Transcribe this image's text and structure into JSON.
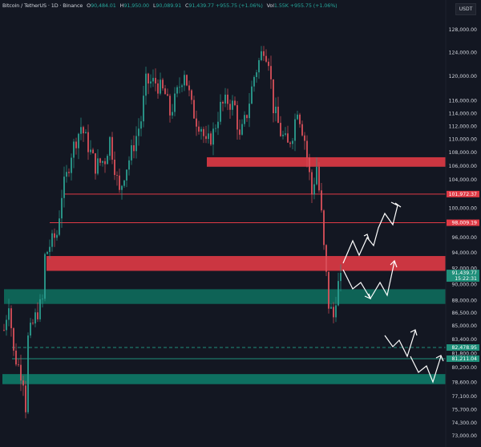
{
  "header": {
    "symbol": "Bitcoin / TetherUS · 1D · Binance",
    "o_label": "O",
    "o": "90,484.01",
    "h_label": "H",
    "h": "91,950.00",
    "l_label": "L",
    "l": "90,089.91",
    "c_label": "C",
    "c": "91,439.77",
    "change": "+955.75 (+1.06%)",
    "vol_label": "Vol",
    "vol": "1.55K",
    "vol_change": "+955.75 (+1.06%)"
  },
  "currency": "USDT",
  "chart_data": {
    "type": "candlestick",
    "title": "Bitcoin / TetherUS · 1D · Binance",
    "scale": "log",
    "ylim": [
      72500,
      130000
    ],
    "y_ticks": [
      128000,
      124000,
      120000,
      116000,
      114000,
      112000,
      110000,
      108000,
      106000,
      104000,
      100000,
      96000,
      94000,
      92000,
      90000,
      88000,
      86500,
      85000,
      83400,
      81800,
      80200,
      78600,
      77100,
      75700,
      74300,
      73000
    ],
    "y_tick_labels": [
      "128,000.00",
      "124,000.00",
      "120,000.00",
      "116,000.00",
      "114,000.00",
      "112,000.00",
      "110,000.00",
      "108,000.00",
      "106,000.00",
      "104,000.00",
      "100,000.00",
      "96,000.00",
      "94,000.00",
      "92,000.00",
      "90,000.00",
      "88,000.00",
      "86,500.00",
      "85,000.00",
      "83,400.00",
      "81,800.00",
      "80,200.00",
      "78,600.00",
      "77,100.00",
      "75,700.00",
      "74,300.00",
      "73,000.00"
    ],
    "close_path": [
      [
        0,
        84500
      ],
      [
        2,
        88000
      ],
      [
        4,
        81800
      ],
      [
        8,
        79000
      ],
      [
        9,
        76000
      ],
      [
        10,
        83500
      ],
      [
        13,
        86000
      ],
      [
        16,
        88000
      ],
      [
        17,
        93500
      ],
      [
        19,
        95000
      ],
      [
        22,
        96500
      ],
      [
        24,
        102000
      ],
      [
        26,
        104500
      ],
      [
        28,
        108000
      ],
      [
        32,
        112000
      ],
      [
        34,
        110000
      ],
      [
        38,
        106000
      ],
      [
        42,
        107000
      ],
      [
        44,
        110000
      ],
      [
        48,
        102000
      ],
      [
        50,
        105000
      ],
      [
        53,
        108000
      ],
      [
        57,
        113000
      ],
      [
        59,
        119000
      ],
      [
        63,
        119000
      ],
      [
        67,
        117000
      ],
      [
        69,
        114000
      ],
      [
        71,
        116000
      ],
      [
        75,
        121000
      ],
      [
        78,
        115000
      ],
      [
        80,
        113000
      ],
      [
        82,
        112000
      ],
      [
        84,
        109000
      ],
      [
        87,
        111000
      ],
      [
        90,
        115000
      ],
      [
        93,
        116000
      ],
      [
        96,
        115000
      ],
      [
        98,
        110000
      ],
      [
        101,
        114000
      ],
      [
        104,
        120000
      ],
      [
        108,
        125000
      ],
      [
        110,
        123000
      ],
      [
        112,
        115000
      ],
      [
        115,
        111000
      ],
      [
        118,
        109000
      ],
      [
        120,
        111000
      ],
      [
        122,
        115000
      ],
      [
        125,
        110000
      ],
      [
        128,
        102000
      ],
      [
        130,
        106000
      ],
      [
        132,
        99000
      ],
      [
        133,
        94500
      ],
      [
        135,
        87500
      ],
      [
        137,
        86000
      ],
      [
        138,
        88500
      ],
      [
        140,
        91439.77
      ]
    ],
    "last_price": {
      "value": 91439.77,
      "label": "91,439.77",
      "countdown": "15:22:31"
    },
    "zones": [
      {
        "type": "supply",
        "top": 107300,
        "bottom": 105900,
        "color": "#e03a45"
      },
      {
        "type": "supply",
        "top": 93600,
        "bottom": 91700,
        "color": "#e03a45"
      },
      {
        "type": "demand",
        "top": 89400,
        "bottom": 87600,
        "color": "#0e6b5c"
      },
      {
        "type": "demand",
        "top": 79500,
        "bottom": 78400,
        "color": "#0e7a68"
      }
    ],
    "levels": [
      {
        "value": 101972.37,
        "label": "101,972.37",
        "color": "#e03a45",
        "style": "solid"
      },
      {
        "value": 98009.19,
        "label": "98,009.19",
        "color": "#e03a45",
        "style": "solid"
      },
      {
        "value": 82478.95,
        "label": "82,478.95",
        "color": "#1f8f7a",
        "style": "dashed"
      },
      {
        "value": 81211.04,
        "label": "81,211.04",
        "color": "#1f8f7a",
        "style": "solid"
      }
    ],
    "colors": {
      "up": "#26a69a",
      "down": "#ef5350",
      "background": "#131722"
    }
  }
}
